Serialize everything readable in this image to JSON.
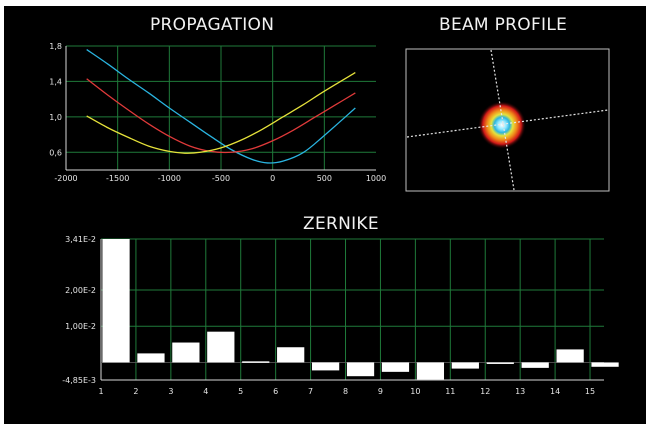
{
  "titles": {
    "propagation": "PROPAGATION",
    "beam_profile": "BEAM PROFILE",
    "zernike": "ZERNIKE"
  },
  "colors": {
    "background": "#000000",
    "grid": "#1f7a3a",
    "axis": "#d9d9d9",
    "bar": "#ffffff",
    "series_cyan": "#2ab4e0",
    "series_red": "#e03a3a",
    "series_yellow": "#e6e23a"
  },
  "chart_data": [
    {
      "type": "line",
      "title": "PROPAGATION",
      "xlim": [
        -2000,
        1000
      ],
      "ylim": [
        0.4,
        1.8
      ],
      "xticks": [
        "-2000",
        "-1500",
        "-1000",
        "-500",
        "0",
        "500",
        "1000"
      ],
      "xtick_values": [
        -2000,
        -1500,
        -1000,
        -500,
        0,
        500,
        1000
      ],
      "yticks": [
        "0,6",
        "1,0",
        "1,4",
        "1,8"
      ],
      "ytick_values": [
        0.6,
        1.0,
        1.4,
        1.8
      ],
      "grid": true,
      "series": [
        {
          "color": "#2ab4e0",
          "x": [
            -1800,
            -1600,
            -1400,
            -1200,
            -1000,
            -800,
            -600,
            -400,
            -200,
            -50,
            100,
            300,
            500,
            800
          ],
          "y": [
            1.76,
            1.6,
            1.43,
            1.27,
            1.1,
            0.94,
            0.78,
            0.63,
            0.52,
            0.48,
            0.5,
            0.6,
            0.79,
            1.1
          ]
        },
        {
          "color": "#e03a3a",
          "x": [
            -1800,
            -1600,
            -1400,
            -1200,
            -1000,
            -800,
            -600,
            -400,
            -200,
            0,
            200,
            400,
            600,
            800
          ],
          "y": [
            1.43,
            1.25,
            1.08,
            0.92,
            0.78,
            0.67,
            0.61,
            0.6,
            0.64,
            0.73,
            0.85,
            0.99,
            1.13,
            1.27
          ]
        },
        {
          "color": "#e6e23a",
          "x": [
            -1800,
            -1600,
            -1400,
            -1200,
            -1000,
            -850,
            -700,
            -500,
            -300,
            -100,
            100,
            300,
            500,
            800
          ],
          "y": [
            1.01,
            0.88,
            0.77,
            0.67,
            0.61,
            0.59,
            0.6,
            0.65,
            0.74,
            0.86,
            1.0,
            1.14,
            1.29,
            1.5
          ]
        }
      ]
    },
    {
      "type": "bar",
      "title": "ZERNIKE",
      "categories": [
        "1",
        "2",
        "3",
        "4",
        "5",
        "6",
        "7",
        "8",
        "9",
        "10",
        "11",
        "12",
        "13",
        "14",
        "15"
      ],
      "values": [
        0.0341,
        0.0025,
        0.0055,
        0.0085,
        0.0003,
        0.0042,
        -0.0022,
        -0.0038,
        -0.0026,
        -0.0047,
        -0.0017,
        -0.0003,
        -0.0015,
        0.0036,
        -0.0012
      ],
      "ylim": [
        -0.00485,
        0.0341
      ],
      "yticks": [
        "-4,85E-3",
        "1,00E-2",
        "2,00E-2",
        "3,41E-2"
      ],
      "ytick_values": [
        -0.00485,
        0.01,
        0.02,
        0.0341
      ],
      "grid": true
    }
  ]
}
